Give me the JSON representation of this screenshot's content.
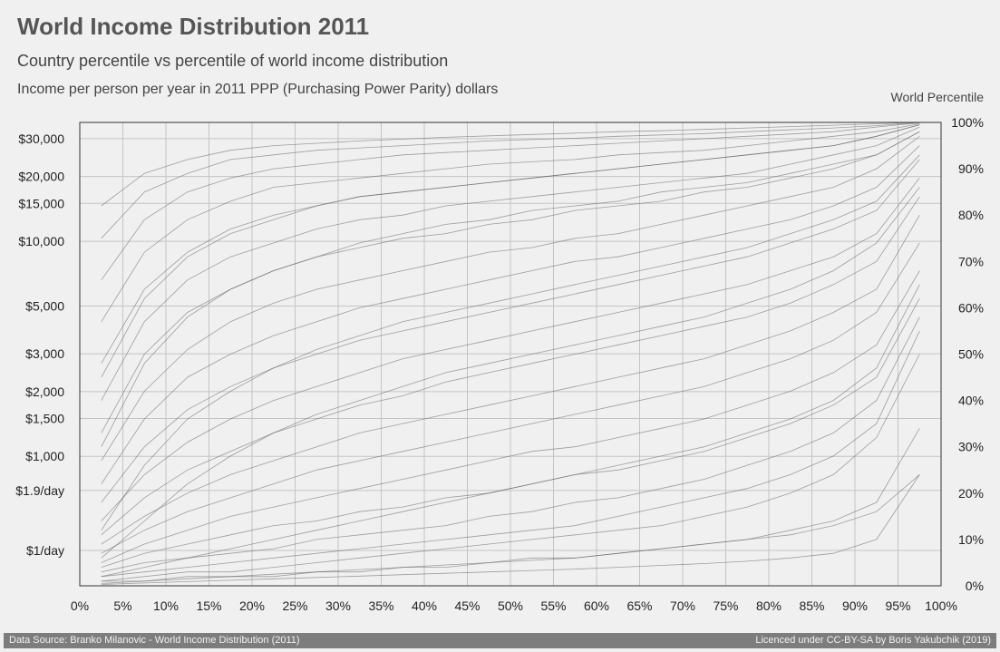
{
  "header": {
    "title": "World Income Distribution 2011",
    "subtitle": "Country percentile vs percentile of world income distribution",
    "unit_label": "Income per person per year in 2011 PPP (Purchasing Power Parity) dollars",
    "right_axis_title": "World Percentile"
  },
  "footer": {
    "source": "Data Source: Branko Milanovic - World Income Distribution (2011)",
    "license": "Licenced under CC-BY-SA by Boris Yakubchik (2019)"
  },
  "colors": {
    "background": "#f0f0f0",
    "grid": "#c4c4c4",
    "lines": "#5a5a5a",
    "footer_bg": "#7d7d7d"
  },
  "chart_data": {
    "type": "line",
    "y_scale": "log",
    "xlim": [
      0,
      100
    ],
    "grid": true,
    "x_ticks": [
      {
        "value": 0,
        "label": "0%"
      },
      {
        "value": 5,
        "label": "5%"
      },
      {
        "value": 10,
        "label": "10%"
      },
      {
        "value": 15,
        "label": "15%"
      },
      {
        "value": 20,
        "label": "20%"
      },
      {
        "value": 25,
        "label": "25%"
      },
      {
        "value": 30,
        "label": "30%"
      },
      {
        "value": 35,
        "label": "35%"
      },
      {
        "value": 40,
        "label": "40%"
      },
      {
        "value": 45,
        "label": "45%"
      },
      {
        "value": 50,
        "label": "50%"
      },
      {
        "value": 55,
        "label": "55%"
      },
      {
        "value": 60,
        "label": "60%"
      },
      {
        "value": 65,
        "label": "65%"
      },
      {
        "value": 70,
        "label": "70%"
      },
      {
        "value": 75,
        "label": "75%"
      },
      {
        "value": 80,
        "label": "80%"
      },
      {
        "value": 85,
        "label": "85%"
      },
      {
        "value": 90,
        "label": "90%"
      },
      {
        "value": 95,
        "label": "95%"
      },
      {
        "value": 100,
        "label": "100%"
      }
    ],
    "y_ticks_left": [
      {
        "value": 30000,
        "label": "$30,000"
      },
      {
        "value": 20000,
        "label": "$20,000"
      },
      {
        "value": 15000,
        "label": "$15,000"
      },
      {
        "value": 10000,
        "label": "$10,000"
      },
      {
        "value": 5000,
        "label": "$5,000"
      },
      {
        "value": 3000,
        "label": "$3,000"
      },
      {
        "value": 2000,
        "label": "$2,000"
      },
      {
        "value": 1500,
        "label": "$1,500"
      },
      {
        "value": 1000,
        "label": "$1,000"
      },
      {
        "value": 693.5,
        "label": "$1.9/day"
      },
      {
        "value": 365,
        "label": "$1/day"
      }
    ],
    "y_ticks_right": [
      {
        "value": 0,
        "label": "0%"
      },
      {
        "value": 10,
        "label": "10%"
      },
      {
        "value": 20,
        "label": "20%"
      },
      {
        "value": 30,
        "label": "30%"
      },
      {
        "value": 40,
        "label": "40%"
      },
      {
        "value": 50,
        "label": "50%"
      },
      {
        "value": 60,
        "label": "60%"
      },
      {
        "value": 70,
        "label": "70%"
      },
      {
        "value": 80,
        "label": "80%"
      },
      {
        "value": 90,
        "label": "90%"
      },
      {
        "value": 100,
        "label": "100%"
      }
    ],
    "x": [
      2.5,
      7.5,
      12.5,
      17.5,
      22.5,
      27.5,
      32.5,
      37.5,
      42.5,
      47.5,
      52.5,
      57.5,
      62.5,
      67.5,
      72.5,
      77.5,
      82.5,
      87.5,
      92.5,
      97.5
    ],
    "series": [
      {
        "values": [
          1,
          1,
          2,
          2,
          2,
          3,
          3,
          4,
          4,
          5,
          6,
          6,
          7,
          8,
          9,
          10,
          12,
          14,
          18,
          34
        ]
      },
      {
        "values": [
          1,
          2,
          3,
          3,
          4,
          5,
          6,
          7,
          8,
          9,
          10,
          11,
          12,
          13,
          15,
          17,
          20,
          24,
          32,
          50
        ]
      },
      {
        "values": [
          2,
          3,
          4,
          5,
          6,
          7,
          8,
          9,
          10,
          11,
          12,
          13,
          15,
          17,
          19,
          21,
          24,
          28,
          35,
          55
        ]
      },
      {
        "values": [
          3,
          5,
          6,
          7,
          8,
          10,
          11,
          12,
          13,
          15,
          16,
          18,
          19,
          21,
          23,
          26,
          29,
          33,
          40,
          58
        ]
      },
      {
        "values": [
          4,
          7,
          9,
          11,
          13,
          14,
          16,
          17,
          19,
          20,
          22,
          24,
          25,
          27,
          29,
          32,
          35,
          39,
          45,
          62
        ]
      },
      {
        "values": [
          5,
          9,
          12,
          15,
          17,
          19,
          21,
          23,
          25,
          27,
          29,
          30,
          32,
          34,
          36,
          39,
          42,
          46,
          52,
          68
        ]
      },
      {
        "values": [
          7,
          12,
          16,
          19,
          22,
          25,
          27,
          29,
          31,
          33,
          35,
          37,
          39,
          41,
          43,
          46,
          49,
          53,
          59,
          74
        ]
      },
      {
        "values": [
          9,
          15,
          20,
          24,
          27,
          30,
          33,
          35,
          37,
          39,
          41,
          43,
          45,
          47,
          49,
          52,
          55,
          59,
          64,
          80
        ]
      },
      {
        "values": [
          11,
          19,
          25,
          29,
          33,
          36,
          39,
          41,
          44,
          46,
          48,
          50,
          52,
          54,
          56,
          58,
          61,
          65,
          70,
          84
        ]
      },
      {
        "values": [
          14,
          24,
          31,
          36,
          40,
          43,
          46,
          49,
          51,
          53,
          55,
          57,
          59,
          61,
          63,
          65,
          68,
          71,
          76,
          88
        ]
      },
      {
        "values": [
          18,
          30,
          38,
          43,
          47,
          50,
          53,
          55,
          57,
          59,
          61,
          63,
          65,
          67,
          69,
          71,
          74,
          77,
          81,
          92
        ]
      },
      {
        "values": [
          22,
          36,
          45,
          50,
          54,
          57,
          60,
          62,
          64,
          66,
          68,
          70,
          71,
          73,
          75,
          77,
          79,
          82,
          86,
          95
        ]
      },
      {
        "values": [
          27,
          42,
          51,
          57,
          61,
          64,
          66,
          68,
          70,
          72,
          73,
          75,
          76,
          78,
          80,
          82,
          84,
          86,
          90,
          97
        ]
      },
      {
        "values": [
          33,
          50,
          59,
          64,
          68,
          71,
          73,
          75,
          76,
          78,
          79,
          81,
          82,
          83,
          85,
          86,
          88,
          90,
          93,
          98
        ]
      },
      {
        "values": [
          40,
          57,
          66,
          71,
          74,
          77,
          79,
          80,
          82,
          83,
          84,
          85,
          86,
          87,
          88,
          89,
          91,
          93,
          95,
          99
        ]
      },
      {
        "values": [
          48,
          64,
          72,
          77,
          80,
          82,
          84,
          85,
          86,
          87,
          88,
          89,
          90,
          91,
          92,
          93,
          94,
          95,
          97,
          99.5
        ]
      },
      {
        "values": [
          57,
          72,
          79,
          83,
          86,
          87,
          88,
          89,
          90,
          91,
          91.5,
          92,
          93,
          93.5,
          94,
          95,
          96,
          97,
          98,
          99.7
        ]
      },
      {
        "values": [
          66,
          79,
          85,
          88,
          90,
          91,
          92,
          93,
          93.5,
          94,
          94.5,
          95,
          95.5,
          96,
          96.5,
          97,
          97.5,
          98,
          99,
          99.9
        ]
      },
      {
        "values": [
          75,
          85,
          89,
          92,
          93,
          94,
          94.5,
          95,
          95.5,
          96,
          96.3,
          96.6,
          97,
          97.3,
          97.6,
          98,
          98.4,
          98.8,
          99.3,
          100
        ]
      },
      {
        "values": [
          82,
          89,
          92,
          94,
          95,
          95.5,
          96,
          96.4,
          96.8,
          97.1,
          97.4,
          97.7,
          98,
          98.2,
          98.5,
          98.8,
          99.1,
          99.4,
          99.7,
          100
        ]
      },
      {
        "values": [
          2,
          4,
          6,
          8,
          10,
          12,
          14,
          16,
          18,
          20,
          22,
          24,
          26,
          28,
          30,
          33,
          36,
          40,
          47,
          65
        ]
      },
      {
        "values": [
          6,
          14,
          22,
          28,
          33,
          37,
          40,
          43,
          46,
          48,
          50,
          52,
          54,
          56,
          58,
          61,
          64,
          68,
          74,
          86
        ]
      },
      {
        "values": [
          12,
          26,
          36,
          42,
          47,
          51,
          54,
          57,
          59,
          61,
          63,
          65,
          67,
          69,
          71,
          73,
          76,
          79,
          83,
          93
        ]
      },
      {
        "values": [
          30,
          48,
          58,
          64,
          68,
          71,
          74,
          76,
          78,
          79,
          81,
          82,
          83,
          85,
          86,
          87,
          89,
          91,
          93,
          98
        ]
      },
      {
        "values": [
          45,
          62,
          71,
          76,
          79,
          82,
          84,
          85,
          86,
          87,
          88,
          89,
          90,
          91,
          92,
          93,
          94,
          95,
          97,
          99.5
        ]
      },
      {
        "values": [
          0.5,
          1,
          1.5,
          2,
          2.5,
          3,
          3.5,
          4,
          4.5,
          5,
          5.5,
          6,
          7,
          8,
          9,
          10,
          11,
          13,
          16,
          24
        ]
      },
      {
        "values": [
          0.3,
          0.6,
          0.9,
          1.2,
          1.5,
          1.8,
          2.1,
          2.4,
          2.7,
          3,
          3.3,
          3.6,
          4,
          4.4,
          4.8,
          5.3,
          6,
          7,
          10,
          24
        ]
      }
    ]
  }
}
